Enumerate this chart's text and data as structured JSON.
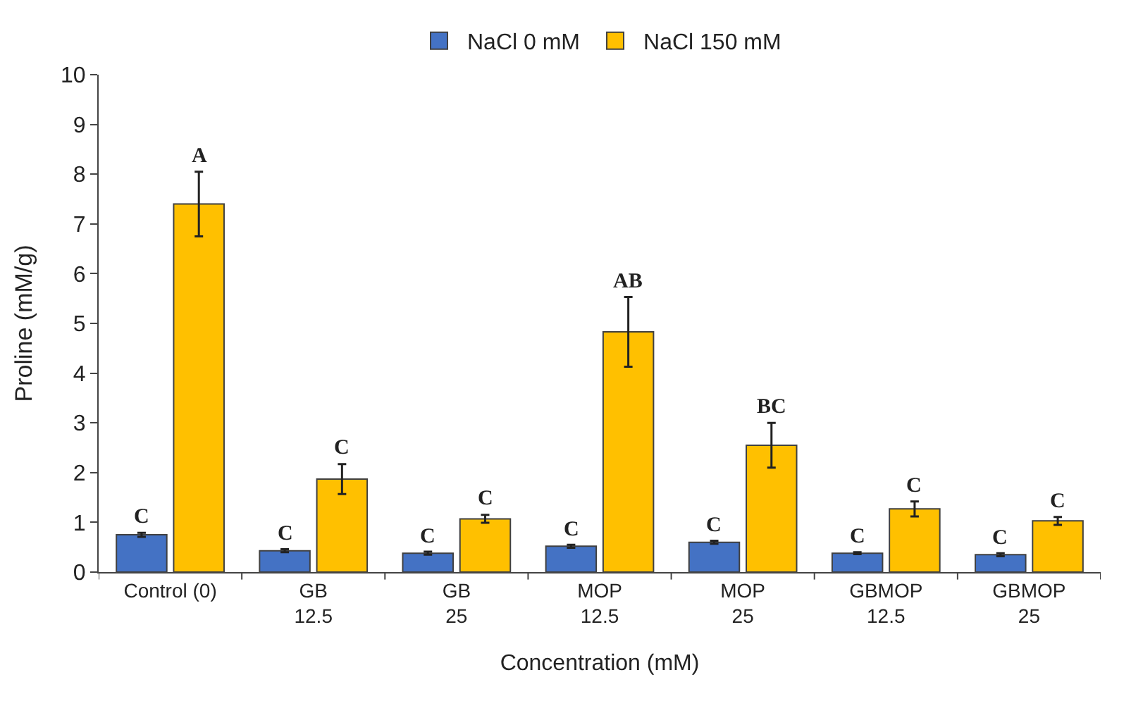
{
  "chart_data": {
    "type": "bar",
    "xlabel": "Concentration (mM)",
    "ylabel": "Proline (mM/g)",
    "categories": [
      "Control (0)",
      "GB\n12.5",
      "GB\n25",
      "MOP\n12.5",
      "MOP\n25",
      "GBMOP\n12.5",
      "GBMOP\n25"
    ],
    "series": [
      {
        "name": "NaCl 0 mM",
        "color": "#4472c4",
        "values": [
          0.75,
          0.43,
          0.38,
          0.52,
          0.6,
          0.38,
          0.35
        ],
        "errors": [
          0.04,
          0.03,
          0.03,
          0.03,
          0.03,
          0.02,
          0.03
        ],
        "value_labels": [
          "C",
          "C",
          "C",
          "C",
          "C",
          "C",
          "C"
        ]
      },
      {
        "name": "NaCl 150 mM",
        "color": "#ffc000",
        "values": [
          7.4,
          1.87,
          1.07,
          4.83,
          2.55,
          1.27,
          1.03
        ],
        "errors": [
          0.65,
          0.3,
          0.08,
          0.7,
          0.45,
          0.15,
          0.08
        ],
        "value_labels": [
          "A",
          "C",
          "C",
          "AB",
          "BC",
          "C",
          "C"
        ]
      }
    ],
    "ylim": [
      0,
      10
    ],
    "yticks": [
      0,
      1,
      2,
      3,
      4,
      5,
      6,
      7,
      8,
      9,
      10
    ],
    "legend": "top"
  }
}
